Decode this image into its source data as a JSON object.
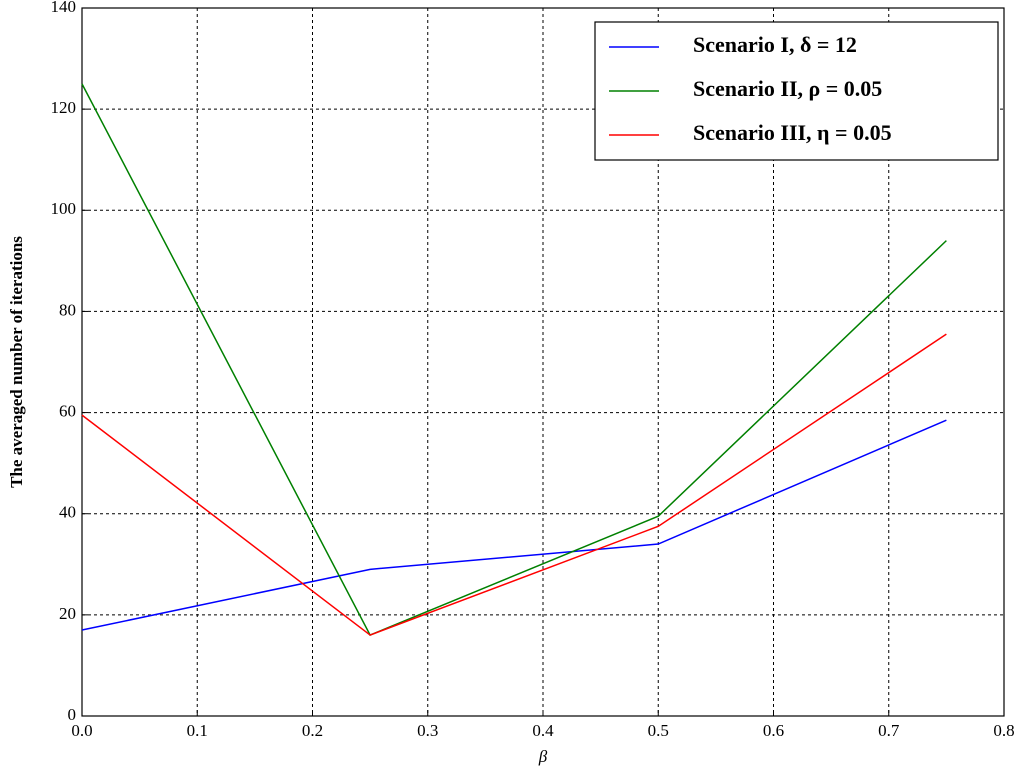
{
  "chart_data": {
    "type": "line",
    "x_label": "β",
    "y_label": "The averaged number of iterations",
    "x": [
      0,
      0.25,
      0.5,
      0.75
    ],
    "series": [
      {
        "name": "Scenario I, δ = 12",
        "color": "#0000ff",
        "values": [
          17,
          29,
          34,
          58.5
        ]
      },
      {
        "name": "Scenario II, ρ = 0.05",
        "color": "#008000",
        "values": [
          125,
          16,
          39.5,
          94
        ]
      },
      {
        "name": "Scenario III, η = 0.05",
        "color": "#ff0000",
        "values": [
          59.5,
          16,
          37.5,
          75.5
        ]
      }
    ],
    "xlim": [
      0,
      0.8
    ],
    "xticks": [
      {
        "value": 0,
        "label": "0.0"
      },
      0.1,
      0.2,
      0.3,
      0.4,
      0.5,
      0.6,
      0.7,
      0.8
    ],
    "ylim": [
      0,
      140
    ],
    "yticks": [
      0,
      20,
      40,
      60,
      80,
      100,
      120,
      140
    ],
    "grid": true,
    "legend": "upper-right"
  }
}
